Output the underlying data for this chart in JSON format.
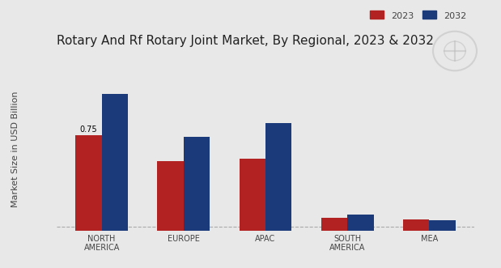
{
  "title": "Rotary And Rf Rotary Joint Market, By Regional, 2023 & 2032",
  "ylabel": "Market Size in USD Billion",
  "categories": [
    "NORTH\nAMERICA",
    "EUROPE",
    "APAC",
    "SOUTH\nAMERICA",
    "MEA"
  ],
  "values_2023": [
    0.75,
    0.55,
    0.57,
    0.1,
    0.09
  ],
  "values_2032": [
    1.08,
    0.74,
    0.85,
    0.13,
    0.085
  ],
  "color_2023": "#b22222",
  "color_2032": "#1a3a7a",
  "bar_annotation": "0.75",
  "background_color": "#e8e8e8",
  "title_fontsize": 11,
  "label_fontsize": 8,
  "tick_fontsize": 7,
  "ylabel_fontsize": 8,
  "legend_labels": [
    "2023",
    "2032"
  ],
  "bar_width": 0.32,
  "ylim": [
    0,
    1.3
  ],
  "bottom_bar_color": "#cc0000",
  "dashed_line_y": 0.03
}
